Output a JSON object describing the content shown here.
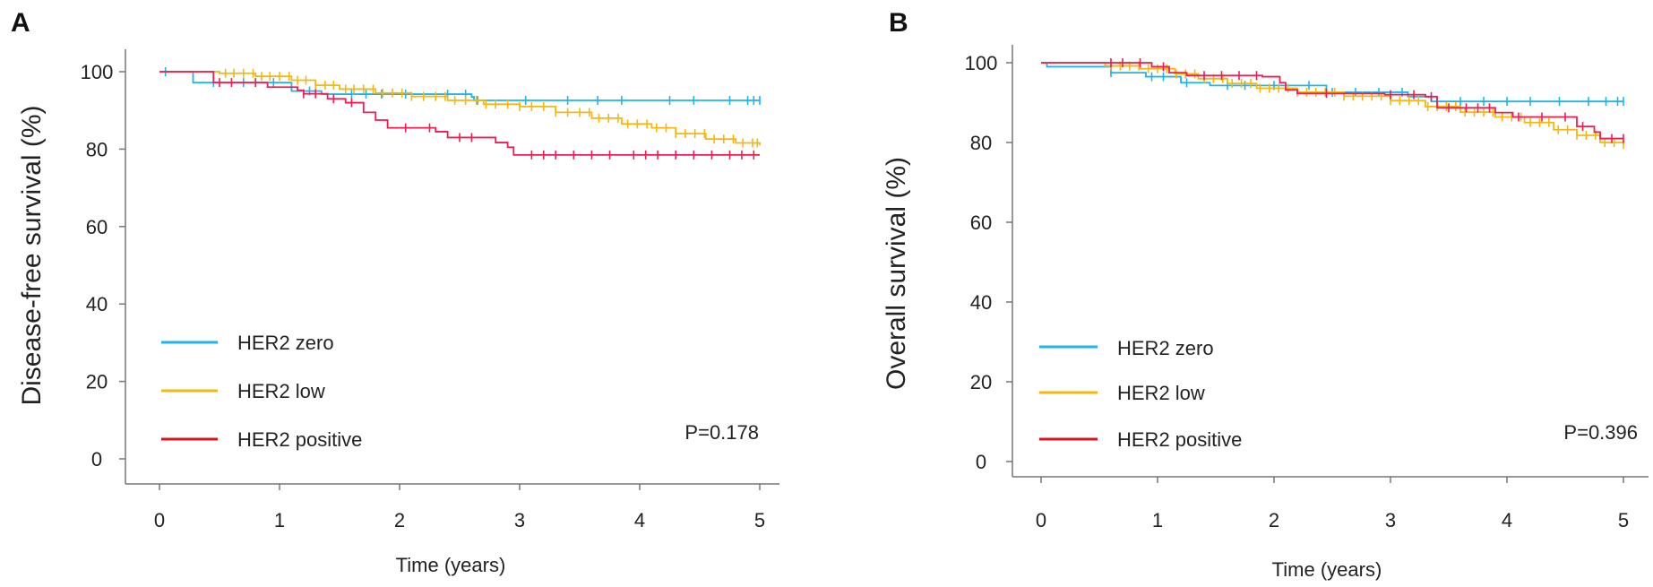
{
  "chart_data": [
    {
      "panel_label": "A",
      "type": "line",
      "subtype": "kaplan-meier",
      "xlabel": "Time (years)",
      "ylabel": "Disease-free survival  (%)",
      "xlim": [
        0,
        5
      ],
      "ylim": [
        0,
        100
      ],
      "xticks": [
        "0",
        "1",
        "2",
        "3",
        "4",
        "5"
      ],
      "yticks": [
        "0",
        "20",
        "40",
        "60",
        "80",
        "100"
      ],
      "grid": false,
      "legend_position": "bottom-left",
      "annotation": "P=0.178",
      "series": [
        {
          "name": "HER2 zero",
          "color": "#1FB5EC",
          "steps": [
            [
              0,
              100
            ],
            [
              0.28,
              97.2
            ],
            [
              1.1,
              95
            ],
            [
              1.35,
              94.2
            ],
            [
              2.6,
              93.5
            ],
            [
              2.62,
              92.6
            ],
            [
              5,
              92.6
            ]
          ],
          "censors": [
            0.05,
            0.45,
            0.7,
            0.95,
            1.25,
            1.6,
            1.72,
            1.85,
            2.05,
            2.4,
            2.55,
            2.65,
            3.05,
            3.4,
            3.65,
            3.85,
            4.25,
            4.45,
            4.75,
            4.9,
            4.95,
            5
          ]
        },
        {
          "name": "HER2 low",
          "color": "#F5B710",
          "steps": [
            [
              0,
              100
            ],
            [
              0.5,
              99.6
            ],
            [
              0.8,
              98.8
            ],
            [
              1.1,
              97.8
            ],
            [
              1.3,
              96.5
            ],
            [
              1.5,
              95.5
            ],
            [
              1.8,
              94.5
            ],
            [
              2.1,
              93.6
            ],
            [
              2.4,
              92.6
            ],
            [
              2.7,
              91.6
            ],
            [
              3,
              91
            ],
            [
              3.3,
              89.5
            ],
            [
              3.6,
              88
            ],
            [
              3.85,
              86.5
            ],
            [
              4.1,
              85.5
            ],
            [
              4.3,
              84
            ],
            [
              4.55,
              82.6
            ],
            [
              4.8,
              81.6
            ],
            [
              5,
              81
            ]
          ],
          "censors": [
            0.55,
            0.62,
            0.7,
            0.78,
            0.85,
            0.92,
            1,
            1.08,
            1.15,
            1.22,
            1.3,
            1.38,
            1.45,
            1.55,
            1.62,
            1.7,
            1.78,
            1.86,
            1.94,
            2.02,
            2.1,
            2.2,
            2.3,
            2.38,
            2.46,
            2.55,
            2.64,
            2.72,
            2.8,
            2.9,
            3,
            3.1,
            3.2,
            3.3,
            3.4,
            3.5,
            3.58,
            3.66,
            3.74,
            3.82,
            3.9,
            3.98,
            4.06,
            4.14,
            4.22,
            4.3,
            4.38,
            4.46,
            4.54,
            4.62,
            4.7,
            4.78,
            4.86,
            4.94,
            4.98
          ]
        },
        {
          "name": "HER2 positive",
          "color": "#EE1D52",
          "steps": [
            [
              0,
              100
            ],
            [
              0.45,
              97.2
            ],
            [
              0.9,
              96
            ],
            [
              1.15,
              95.2
            ],
            [
              1.2,
              94.3
            ],
            [
              1.4,
              93
            ],
            [
              1.55,
              92
            ],
            [
              1.7,
              89.5
            ],
            [
              1.8,
              87.5
            ],
            [
              1.9,
              85.5
            ],
            [
              2.3,
              84.5
            ],
            [
              2.4,
              83
            ],
            [
              2.8,
              81.7
            ],
            [
              2.9,
              80.5
            ],
            [
              2.95,
              78.5
            ],
            [
              5,
              78.5
            ]
          ],
          "censors": [
            0.5,
            0.6,
            0.8,
            1.2,
            1.3,
            1.45,
            1.6,
            2.05,
            2.25,
            2.5,
            2.6,
            3.1,
            3.2,
            3.3,
            3.45,
            3.6,
            3.75,
            3.95,
            4.05,
            4.15,
            4.3,
            4.45,
            4.6,
            4.75,
            4.85,
            4.95
          ]
        }
      ]
    },
    {
      "panel_label": "B",
      "type": "line",
      "subtype": "kaplan-meier",
      "xlabel": "Time (years)",
      "ylabel": "Overall survival  (%)",
      "xlim": [
        0,
        5
      ],
      "ylim": [
        0,
        100
      ],
      "xticks": [
        "0",
        "1",
        "2",
        "3",
        "4",
        "5"
      ],
      "yticks": [
        "0",
        "20",
        "40",
        "60",
        "80",
        "100"
      ],
      "grid": false,
      "legend_position": "bottom-left",
      "annotation": "P=0.396",
      "series": [
        {
          "name": "HER2 zero",
          "color": "#1FB5EC",
          "steps": [
            [
              0,
              100
            ],
            [
              0.05,
              99
            ],
            [
              0.6,
              97.5
            ],
            [
              0.9,
              96.5
            ],
            [
              1.2,
              95
            ],
            [
              1.45,
              94.3
            ],
            [
              2.45,
              92.6
            ],
            [
              3.15,
              91.5
            ],
            [
              3.35,
              90.3
            ],
            [
              5,
              90.3
            ]
          ],
          "censors": [
            0.6,
            0.95,
            1.05,
            1.25,
            1.6,
            1.75,
            2.0,
            2.3,
            2.5,
            2.7,
            2.9,
            3.1,
            3.4,
            3.6,
            3.8,
            4.0,
            4.2,
            4.45,
            4.7,
            4.85,
            4.95,
            5
          ]
        },
        {
          "name": "HER2 low",
          "color": "#F5B710",
          "steps": [
            [
              0,
              100
            ],
            [
              0.55,
              99.2
            ],
            [
              0.85,
              98.5
            ],
            [
              1.15,
              97.2
            ],
            [
              1.35,
              96
            ],
            [
              1.6,
              94.8
            ],
            [
              1.85,
              93.6
            ],
            [
              2.2,
              92.6
            ],
            [
              2.6,
              91.6
            ],
            [
              3,
              90.5
            ],
            [
              3.3,
              89
            ],
            [
              3.6,
              87.6
            ],
            [
              3.9,
              86.4
            ],
            [
              4.15,
              85
            ],
            [
              4.4,
              83.2
            ],
            [
              4.6,
              81.8
            ],
            [
              4.8,
              80
            ],
            [
              5,
              79.5
            ]
          ],
          "censors": [
            0.6,
            0.68,
            0.76,
            0.84,
            0.92,
            1,
            1.08,
            1.16,
            1.24,
            1.32,
            1.4,
            1.48,
            1.56,
            1.64,
            1.72,
            1.8,
            1.88,
            1.96,
            2.04,
            2.12,
            2.2,
            2.28,
            2.36,
            2.44,
            2.52,
            2.6,
            2.68,
            2.76,
            2.84,
            2.92,
            3,
            3.08,
            3.16,
            3.24,
            3.32,
            3.4,
            3.48,
            3.56,
            3.64,
            3.72,
            3.8,
            3.88,
            3.96,
            4.04,
            4.12,
            4.2,
            4.28,
            4.36,
            4.44,
            4.52,
            4.6,
            4.68,
            4.76,
            4.84,
            4.92,
            5
          ]
        },
        {
          "name": "HER2 positive",
          "color": "#EE1D52",
          "steps": [
            [
              0,
              100
            ],
            [
              0.95,
              99
            ],
            [
              1.1,
              97.5
            ],
            [
              1.25,
              96.8
            ],
            [
              1.9,
              96.5
            ],
            [
              2.05,
              95
            ],
            [
              2.1,
              93.2
            ],
            [
              2.2,
              92.3
            ],
            [
              2.95,
              92
            ],
            [
              3.3,
              91.5
            ],
            [
              3.4,
              88.7
            ],
            [
              3.9,
              87.5
            ],
            [
              4.05,
              86.4
            ],
            [
              4.6,
              84
            ],
            [
              4.75,
              82.6
            ],
            [
              4.8,
              81
            ],
            [
              5,
              81
            ]
          ],
          "censors": [
            0.6,
            0.7,
            0.85,
            1.05,
            1.4,
            1.55,
            1.7,
            1.85,
            2.45,
            3.0,
            3.2,
            3.35,
            3.5,
            3.65,
            3.75,
            3.85,
            4.1,
            4.3,
            4.5,
            4.65,
            4.9,
            5
          ]
        }
      ]
    }
  ]
}
